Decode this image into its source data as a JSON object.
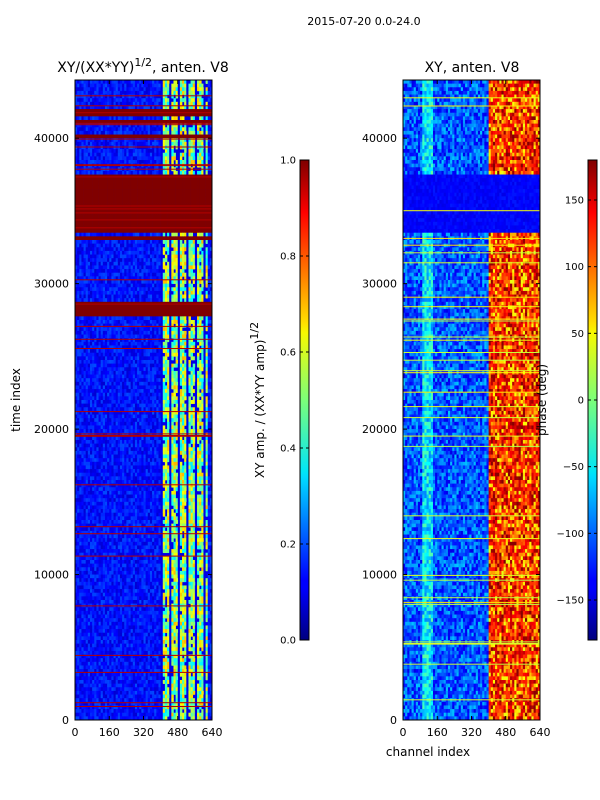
{
  "chart_data": {
    "figure_title": "2015-07-20 0.0-24.0",
    "colormap": "jet",
    "panels": [
      {
        "type": "heatmap",
        "title_main": "XY/(XX*YY)",
        "title_sup": "1/2",
        "title_suffix": ", anten. V8",
        "xlabel": "",
        "ylabel": "time index",
        "xlim": [
          0,
          640
        ],
        "ylim": [
          0,
          44000
        ],
        "x_ticks": [
          0,
          160,
          320,
          480,
          640
        ],
        "y_ticks": [
          0,
          10000,
          20000,
          30000,
          40000
        ],
        "x_tick_labels": [
          "0",
          "160",
          "320",
          "480",
          "640"
        ],
        "y_tick_labels": [
          "0",
          "10000",
          "20000",
          "30000",
          "40000"
        ],
        "colorbar": {
          "label_main": "XY amp. / (XX*YY amp)",
          "label_sup": "1/2",
          "range": [
            0.0,
            1.0
          ],
          "ticks": [
            0.0,
            0.2,
            0.4,
            0.6,
            0.8,
            1.0
          ],
          "tick_labels": [
            "0.0",
            "0.2",
            "0.4",
            "0.6",
            "0.8",
            "1.0"
          ]
        },
        "saturated_time_bands": [
          [
            41600,
            42000
          ],
          [
            40900,
            41200
          ],
          [
            39900,
            40300
          ],
          [
            33400,
            37500
          ],
          [
            32900,
            33200
          ],
          [
            27700,
            28800
          ]
        ],
        "active_channel_range": [
          400,
          620
        ],
        "typical_value_outside": 0.1,
        "typical_value_active": 0.45
      },
      {
        "type": "heatmap",
        "title_main": "XY, anten. V8",
        "xlabel": "channel index",
        "ylabel": "",
        "xlim": [
          0,
          640
        ],
        "ylim": [
          0,
          44000
        ],
        "x_ticks": [
          0,
          160,
          320,
          480,
          640
        ],
        "y_ticks": [
          0,
          10000,
          20000,
          30000,
          40000
        ],
        "x_tick_labels": [
          "0",
          "160",
          "320",
          "480",
          "640"
        ],
        "y_tick_labels": [
          "0",
          "10000",
          "20000",
          "30000",
          "40000"
        ],
        "colorbar": {
          "label_main": "phase (deg)",
          "range": [
            -180,
            180
          ],
          "ticks": [
            -150,
            -100,
            -50,
            0,
            50,
            100,
            150
          ],
          "tick_labels": [
            "−150",
            "−100",
            "−50",
            "0",
            "50",
            "100",
            "150"
          ]
        },
        "low_phase_time_band": [
          33500,
          37500
        ],
        "active_channel_range": [
          400,
          640
        ],
        "typical_phase_outside": -150,
        "typical_phase_active": 150
      }
    ]
  }
}
